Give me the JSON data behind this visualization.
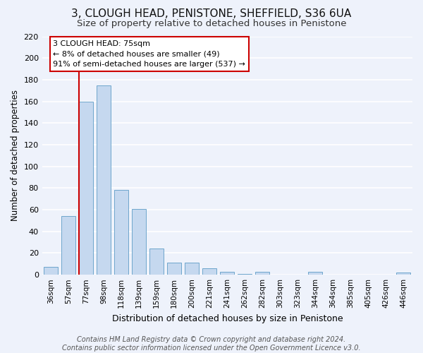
{
  "title": "3, CLOUGH HEAD, PENISTONE, SHEFFIELD, S36 6UA",
  "subtitle": "Size of property relative to detached houses in Penistone",
  "xlabel": "Distribution of detached houses by size in Penistone",
  "ylabel": "Number of detached properties",
  "bar_labels": [
    "36sqm",
    "57sqm",
    "77sqm",
    "98sqm",
    "118sqm",
    "139sqm",
    "159sqm",
    "180sqm",
    "200sqm",
    "221sqm",
    "241sqm",
    "262sqm",
    "282sqm",
    "303sqm",
    "323sqm",
    "344sqm",
    "364sqm",
    "385sqm",
    "405sqm",
    "426sqm",
    "446sqm"
  ],
  "bar_values": [
    7,
    54,
    160,
    175,
    78,
    61,
    24,
    11,
    11,
    6,
    3,
    1,
    3,
    0,
    0,
    3,
    0,
    0,
    0,
    0,
    2
  ],
  "bar_color": "#c5d8ef",
  "bar_edge_color": "#6ea6cc",
  "property_line_index": 2,
  "property_line_color": "#cc0000",
  "ylim": [
    0,
    220
  ],
  "yticks": [
    0,
    20,
    40,
    60,
    80,
    100,
    120,
    140,
    160,
    180,
    200,
    220
  ],
  "annotation_title": "3 CLOUGH HEAD: 75sqm",
  "annotation_line1": "← 8% of detached houses are smaller (49)",
  "annotation_line2": "91% of semi-detached houses are larger (537) →",
  "annotation_box_color": "#ffffff",
  "annotation_box_edge": "#cc0000",
  "footer_line1": "Contains HM Land Registry data © Crown copyright and database right 2024.",
  "footer_line2": "Contains public sector information licensed under the Open Government Licence v3.0.",
  "background_color": "#eef2fb",
  "grid_color": "#ffffff",
  "title_fontsize": 11,
  "subtitle_fontsize": 9.5,
  "xlabel_fontsize": 9,
  "ylabel_fontsize": 8.5,
  "footer_fontsize": 7
}
